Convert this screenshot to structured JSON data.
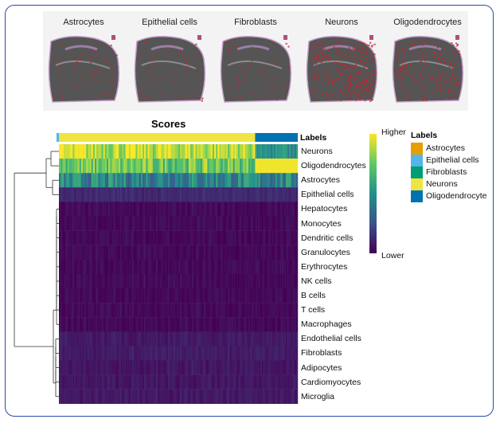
{
  "panels": [
    {
      "title": "Astrocytes",
      "intensity": 0.15
    },
    {
      "title": "Epithelial cells",
      "intensity": 0.12
    },
    {
      "title": "Fibroblasts",
      "intensity": 0.12
    },
    {
      "title": "Neurons",
      "intensity": 0.9
    },
    {
      "title": "Oligodendrocytes",
      "intensity": 0.55
    }
  ],
  "heatmap": {
    "title": "Scores",
    "labels_header": "Labels",
    "rows": [
      "Neurons",
      "Oligodendrocytes",
      "Astrocytes",
      "Epithelial cells",
      "Hepatocytes",
      "Monocytes",
      "Dendritic cells",
      "Granulocytes",
      "Erythrocytes",
      "NK cells",
      "B cells",
      "T cells",
      "Macrophages",
      "Endothelial cells",
      "Fibroblasts",
      "Adipocytes",
      "Cardiomyocytes",
      "Microglia"
    ],
    "row_levels": [
      0.9,
      0.75,
      0.45,
      0.12,
      0.02,
      0.02,
      0.02,
      0.02,
      0.02,
      0.02,
      0.02,
      0.02,
      0.02,
      0.07,
      0.08,
      0.06,
      0.06,
      0.07
    ],
    "label_split_fraction": 0.82
  },
  "colorbar": {
    "high": "Higher",
    "low": "Lower"
  },
  "legend": {
    "title": "Labels",
    "items": [
      {
        "label": "Astrocytes",
        "color": "#e69f00"
      },
      {
        "label": "Epithelial cells",
        "color": "#56b4e9"
      },
      {
        "label": "Fibroblasts",
        "color": "#009e73"
      },
      {
        "label": "Neurons",
        "color": "#f0e442"
      },
      {
        "label": "Oligodendrocyte",
        "color": "#0072b2"
      }
    ]
  },
  "colors": {
    "frame": "#2d4aa8",
    "tissue": "#555555",
    "highlight": "#c0262d"
  }
}
